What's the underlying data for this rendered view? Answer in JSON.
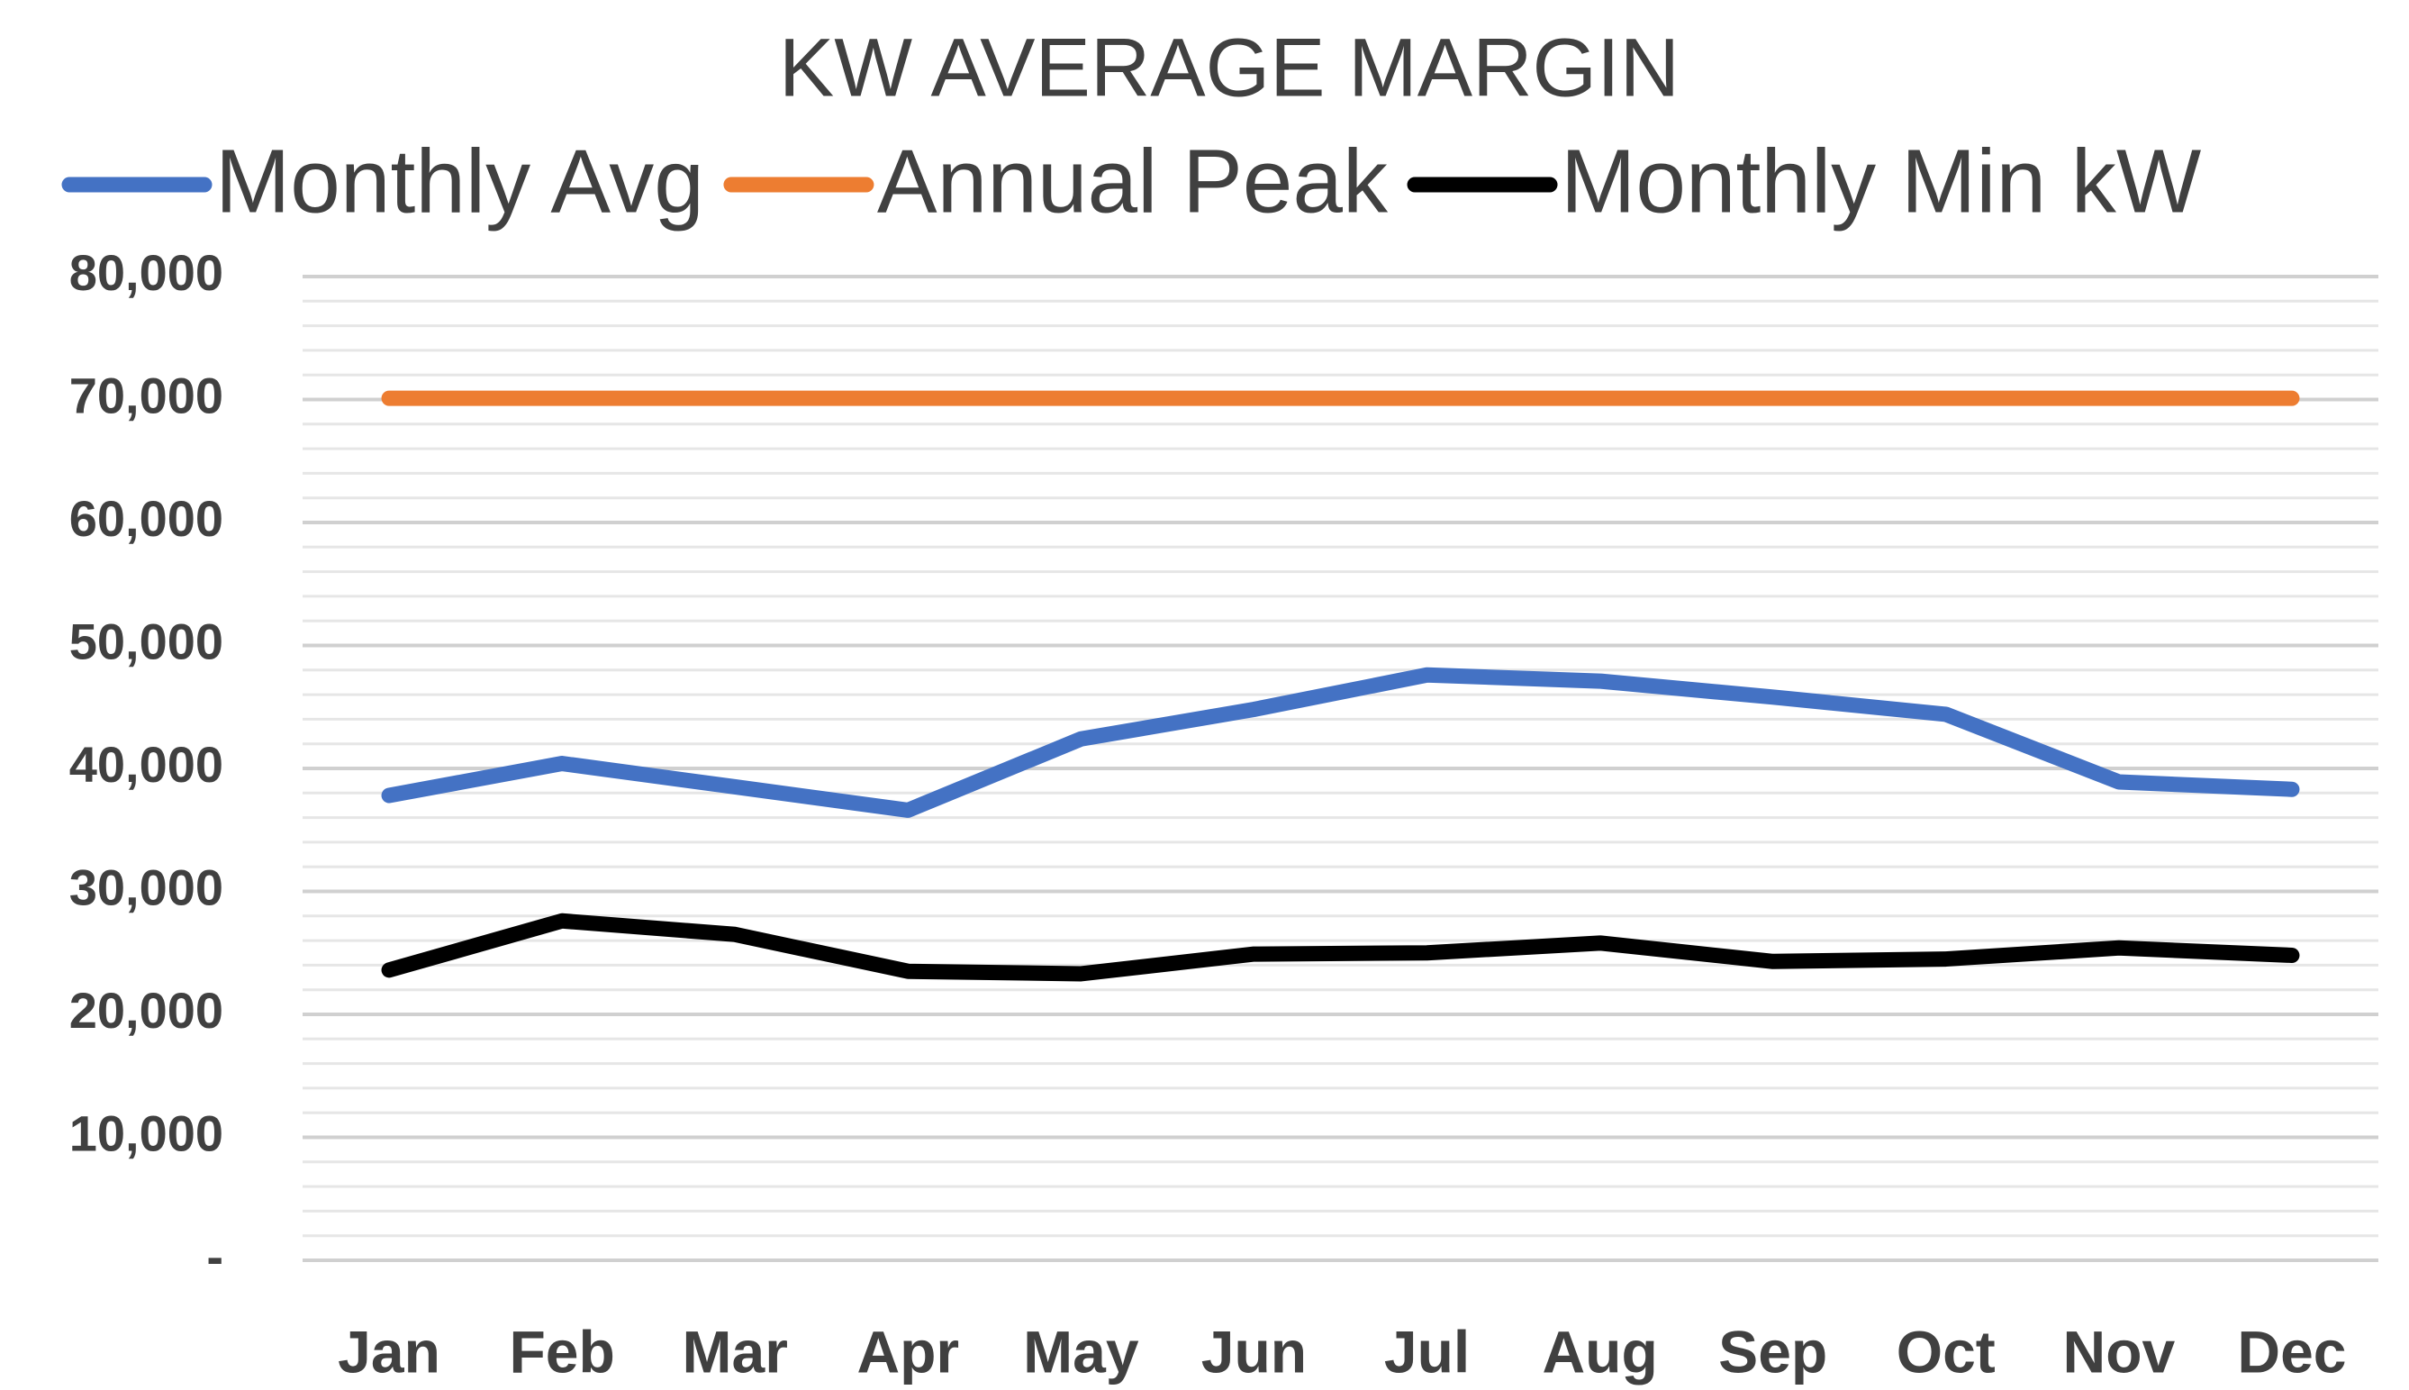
{
  "chart_data": {
    "type": "line",
    "title": "KW AVERAGE MARGIN",
    "categories": [
      "Jan",
      "Feb",
      "Mar",
      "Apr",
      "May",
      "Jun",
      "Jul",
      "Aug",
      "Sep",
      "Oct",
      "Nov",
      "Dec"
    ],
    "series": [
      {
        "name": "Monthly Avg",
        "color": "#4472c4",
        "values": [
          37800,
          40400,
          38500,
          36600,
          42400,
          44800,
          47600,
          47100,
          45800,
          44400,
          38900,
          38300
        ]
      },
      {
        "name": "Annual Peak",
        "color": "#ed7d31",
        "values": [
          70100,
          70100,
          70100,
          70100,
          70100,
          70100,
          70100,
          70100,
          70100,
          70100,
          70100,
          70100
        ]
      },
      {
        "name": "Monthly Min kW",
        "color": "#000000",
        "values": [
          23600,
          27600,
          26500,
          23500,
          23300,
          24900,
          25000,
          25800,
          24300,
          24500,
          25400,
          24800
        ]
      }
    ],
    "ylim": [
      0,
      80000
    ],
    "yticks": [
      {
        "value": 0,
        "label": "-"
      },
      {
        "value": 10000,
        "label": "10,000"
      },
      {
        "value": 20000,
        "label": "20,000"
      },
      {
        "value": 30000,
        "label": "30,000"
      },
      {
        "value": 40000,
        "label": "40,000"
      },
      {
        "value": 50000,
        "label": "50,000"
      },
      {
        "value": 60000,
        "label": "60,000"
      },
      {
        "value": 70000,
        "label": "70,000"
      },
      {
        "value": 80000,
        "label": "80,000"
      }
    ],
    "grid": true,
    "minor_grid": true,
    "legend": "top"
  }
}
